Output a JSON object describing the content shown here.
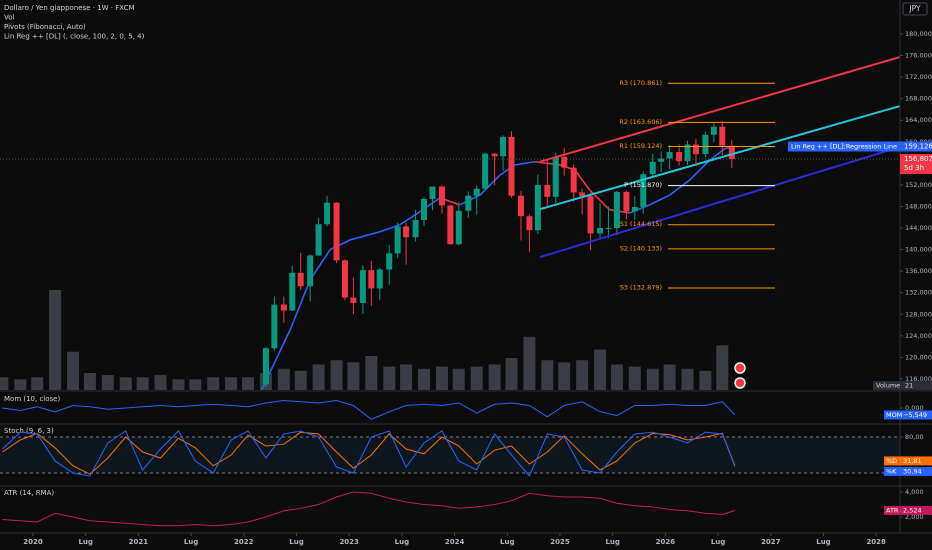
{
  "chart_data": {
    "type": "candlestick",
    "legend_lines": [
      "Dollaro / Yen giapponese · 1W · FXCM",
      "Vol",
      "Pivots (Fibonacci, Auto)",
      "Lin Reg ++ [DL] (, close, 100, 2, 0, 5, 4)"
    ],
    "currency": "JPY",
    "xlim": [
      2019.687,
      2028.226
    ],
    "xticks": [
      2020,
      {
        "value": 2020.5,
        "label": "Lug"
      },
      2021,
      {
        "value": 2021.5,
        "label": "Lug"
      },
      2022,
      {
        "value": 2022.5,
        "label": "Lug"
      },
      2023,
      {
        "value": 2023.5,
        "label": "Lug"
      },
      2024,
      {
        "value": 2024.5,
        "label": "Lug"
      },
      2025,
      {
        "value": 2025.5,
        "label": "Lug"
      },
      2026,
      {
        "value": 2026.5,
        "label": "Lug"
      },
      2027,
      {
        "value": 2027.5,
        "label": "Lug"
      },
      2028
    ],
    "ylim": [
      113.95,
      186.31
    ],
    "yticks": [
      {
        "value": 116,
        "label": "116,000"
      },
      {
        "value": 120,
        "label": "120,000"
      },
      {
        "value": 124,
        "label": "124,000"
      },
      {
        "value": 128,
        "label": "128,000"
      },
      {
        "value": 132,
        "label": "132,000"
      },
      {
        "value": 136,
        "label": "136,000"
      },
      {
        "value": 140,
        "label": "140,000"
      },
      {
        "value": 144,
        "label": "144,000"
      },
      {
        "value": 148,
        "label": "148,000"
      },
      {
        "value": 152,
        "label": "152,000"
      },
      {
        "value": 156,
        "label": "156,000"
      },
      {
        "value": 160,
        "label": "160,000"
      },
      {
        "value": 164,
        "label": "164,000"
      },
      {
        "value": 168,
        "label": "168,000"
      },
      {
        "value": 172,
        "label": "172,000"
      },
      {
        "value": 176,
        "label": "176,000"
      },
      {
        "value": 180,
        "label": "180,000"
      }
    ],
    "grid": false,
    "up_color": "#089981",
    "down_color": "#f23645",
    "x": [
      2022.21,
      2022.29,
      2022.38,
      2022.46,
      2022.54,
      2022.63,
      2022.71,
      2022.79,
      2022.88,
      2022.96,
      2023.04,
      2023.13,
      2023.21,
      2023.29,
      2023.38,
      2023.46,
      2023.54,
      2023.63,
      2023.71,
      2023.79,
      2023.88,
      2023.96,
      2024.04,
      2024.13,
      2024.21,
      2024.29,
      2024.38,
      2024.46,
      2024.54,
      2024.63,
      2024.71,
      2024.79,
      2024.88,
      2024.96,
      2025.04,
      2025.13,
      2025.21,
      2025.29,
      2025.38,
      2025.46,
      2025.54,
      2025.63,
      2025.71,
      2025.79,
      2025.88,
      2025.96,
      2026.04,
      2026.13,
      2026.21,
      2026.29,
      2026.38,
      2026.46,
      2026.54,
      2026.63
    ],
    "open": [
      115,
      121.7,
      129.8,
      128.7,
      135.7,
      133.2,
      138.9,
      144.7,
      148.7,
      138,
      131.1,
      130.1,
      136.2,
      132.8,
      136.3,
      139.3,
      144.3,
      142.3,
      145.5,
      149.4,
      151.7,
      148.2,
      141,
      147.2,
      150,
      151.3,
      157.8,
      157.3,
      160.9,
      150,
      146.2,
      143.6,
      152,
      149.8,
      157.2,
      155.2,
      150.6,
      149.9,
      143,
      144,
      144,
      150.7,
      147.1,
      147.9,
      154,
      156.3,
      156.9,
      158.1,
      156.4,
      159.5,
      157.7,
      161.3,
      162.8,
      159.3
    ],
    "high": [
      122,
      131.3,
      131.3,
      137,
      139.4,
      139.1,
      145.9,
      150,
      148.8,
      138.2,
      134.8,
      137.1,
      137.9,
      136.6,
      140.9,
      145,
      145,
      147.4,
      149.7,
      151.7,
      151.9,
      148.3,
      148.8,
      150.8,
      151.9,
      158,
      157.9,
      161.2,
      162,
      150.9,
      146.5,
      153.9,
      156.7,
      158,
      158.9,
      155.8,
      151.3,
      150.5,
      148.6,
      148,
      150.9,
      151,
      149.9,
      154.5,
      157.8,
      158.2,
      159.4,
      159.5,
      160.2,
      160.5,
      161.9,
      163.5,
      163.8,
      160.3
    ],
    "low": [
      114.5,
      121.3,
      126.4,
      128.6,
      132.5,
      130.4,
      138.8,
      144.3,
      137.5,
      130.6,
      128,
      128.1,
      129.6,
      130.6,
      133.5,
      138.4,
      137.2,
      141.5,
      144.4,
      147.3,
      146.7,
      140.9,
      140.8,
      145.9,
      146.5,
      151,
      151.9,
      154.6,
      149.6,
      141.7,
      139.6,
      142.9,
      148,
      148.6,
      153.7,
      148.9,
      146.5,
      139.9,
      142.1,
      142.1,
      142.7,
      145.6,
      145.5,
      146.6,
      153.6,
      154.4,
      154.9,
      155.6,
      155.7,
      156.1,
      157.2,
      159.9,
      157.5,
      155.1
    ],
    "close": [
      121.7,
      129.8,
      128.7,
      135.7,
      133.2,
      138.9,
      144.7,
      148.7,
      138,
      131.1,
      130.1,
      136.2,
      132.8,
      136.3,
      139.3,
      144.3,
      142.3,
      145.5,
      149.4,
      151.7,
      148.2,
      141,
      147.2,
      150,
      151.3,
      157.8,
      157.3,
      160.9,
      150,
      146.2,
      143.6,
      152,
      149.8,
      157.2,
      155.2,
      150.6,
      149.9,
      143,
      144,
      144,
      150.7,
      147.1,
      147.9,
      154,
      156.3,
      156.9,
      158.1,
      156.4,
      159.5,
      157.7,
      161.3,
      162.8,
      159.3,
      156.8
    ],
    "last_price": {
      "value": 156.807,
      "label": "156,807",
      "countdown": "5d 3h",
      "color": "#f23645"
    },
    "volume": {
      "name": "Volume",
      "color": "#3a3d45",
      "x": [
        2019.71,
        2019.88,
        2020.04,
        2020.21,
        2020.38,
        2020.54,
        2020.71,
        2020.88,
        2021.04,
        2021.21,
        2021.38,
        2021.54,
        2021.71,
        2021.88,
        2022.04,
        2022.21,
        2022.38,
        2022.54,
        2022.71,
        2022.88,
        2023.04,
        2023.21,
        2023.38,
        2023.54,
        2023.71,
        2023.88,
        2024.04,
        2024.21,
        2024.38,
        2024.54,
        2024.71,
        2024.88,
        2025.04,
        2025.21,
        2025.38,
        2025.54,
        2025.71,
        2025.88,
        2026.04,
        2026.21,
        2026.38,
        2026.54
      ],
      "values": [
        6,
        5,
        6,
        47,
        18,
        8,
        7,
        6,
        6,
        7,
        5,
        5,
        6,
        6,
        6,
        8,
        10,
        9,
        12,
        14,
        13,
        16,
        11,
        12,
        10,
        11,
        10,
        11,
        12,
        15,
        25,
        14,
        13,
        14,
        19,
        12,
        11,
        10,
        12,
        10,
        9,
        21
      ]
    },
    "ma": {
      "rising_color": "#2962ff",
      "falling_color": "#f23645",
      "x": [
        2022.17,
        2022.44,
        2022.63,
        2022.82,
        2023.01,
        2023.29,
        2023.48,
        2023.67,
        2023.86,
        2024.05,
        2024.24,
        2024.43,
        2024.57,
        2024.76,
        2025.0,
        2025.14,
        2025.28,
        2025.47,
        2025.66,
        2025.85,
        2026.04,
        2026.23,
        2026.42,
        2026.57,
        2026.66
      ],
      "values": [
        114.0,
        125.1,
        134.4,
        140,
        141.8,
        143.3,
        144.6,
        147,
        149.6,
        148.3,
        150.1,
        153.8,
        155.7,
        156.3,
        155.7,
        154.8,
        151.1,
        147.4,
        146.8,
        148.3,
        150.1,
        152.9,
        156.6,
        158.8,
        159
      ]
    },
    "channel": [
      {
        "color": "#f23645",
        "x": [
          2024.81,
          2028.22
        ],
        "values": [
          156.3,
          175.7
        ]
      },
      {
        "color": "#26c6da",
        "x": [
          2024.81,
          2028.22
        ],
        "values": [
          147.5,
          166.6
        ]
      },
      {
        "color": "#2b2bd8",
        "x": [
          2024.81,
          2028.22
        ],
        "values": [
          138.6,
          159.0
        ]
      }
    ],
    "regression_label": {
      "name": "Lin Reg ++ [DL]:Regression Line",
      "value": 159.126,
      "label": "159,126",
      "color": "#2962ff"
    },
    "pivot_x": [
      2026.025,
      2027.04
    ],
    "pivots": [
      {
        "label": "R3 (170.861)",
        "value": 170.861,
        "color": "#ff9800"
      },
      {
        "label": "R2 (163.606)",
        "value": 163.606,
        "color": "#ff9800"
      },
      {
        "label": "R1 (159.124)",
        "value": 159.124,
        "color": "#ff9800"
      },
      {
        "label": "P (151.870)",
        "value": 151.87,
        "color": "#ffffff"
      },
      {
        "label": "S1 (144.615)",
        "value": 144.615,
        "color": "#ff9800"
      },
      {
        "label": "S2 (140.133)",
        "value": 140.133,
        "color": "#ff9800"
      },
      {
        "label": "S3 (132.879)",
        "value": 132.879,
        "color": "#ff9800"
      }
    ],
    "indicators": [
      {
        "title": "Mom (10, close)",
        "ylim": [
          -12,
          12
        ],
        "yticks": [
          {
            "value": 0,
            "label": "0,000"
          }
        ],
        "x": [
          2019.71,
          2019.88,
          2020.04,
          2020.21,
          2020.38,
          2020.54,
          2020.71,
          2020.88,
          2021.04,
          2021.21,
          2021.38,
          2021.54,
          2021.71,
          2021.88,
          2022.04,
          2022.21,
          2022.38,
          2022.54,
          2022.71,
          2022.88,
          2023.04,
          2023.21,
          2023.38,
          2023.54,
          2023.71,
          2023.88,
          2024.04,
          2024.21,
          2024.38,
          2024.54,
          2024.71,
          2024.88,
          2025.04,
          2025.21,
          2025.38,
          2025.54,
          2025.71,
          2025.88,
          2026.04,
          2026.21,
          2026.38,
          2026.54,
          2026.66
        ],
        "series": [
          {
            "name": "MOM",
            "color": "#2962ff",
            "last_label": "−5,549",
            "values": [
              0,
              -2,
              1,
              -3,
              2,
              1,
              -1,
              0,
              1,
              2,
              1,
              2,
              3,
              2,
              1,
              4,
              6,
              5,
              4,
              6,
              2,
              -9,
              -3,
              2,
              3,
              2,
              4,
              -4,
              3,
              4,
              2,
              -7,
              2,
              5,
              -3,
              -6,
              2,
              2,
              3,
              2,
              2,
              5,
              -5.549
            ]
          }
        ]
      },
      {
        "title": "Stoch (9, 6, 3)",
        "ylim": [
          0,
          100
        ],
        "yticks": [
          {
            "value": 80,
            "label": "80,00"
          }
        ],
        "band": [
          20,
          80
        ],
        "x": [
          2019.71,
          2019.88,
          2020.04,
          2020.21,
          2020.38,
          2020.54,
          2020.71,
          2020.88,
          2021.04,
          2021.21,
          2021.38,
          2021.54,
          2021.71,
          2021.88,
          2022.04,
          2022.21,
          2022.38,
          2022.54,
          2022.71,
          2022.88,
          2023.04,
          2023.21,
          2023.38,
          2023.54,
          2023.71,
          2023.88,
          2024.04,
          2024.21,
          2024.38,
          2024.54,
          2024.71,
          2024.88,
          2025.04,
          2025.21,
          2025.38,
          2025.54,
          2025.71,
          2025.88,
          2026.04,
          2026.21,
          2026.38,
          2026.54,
          2026.66
        ],
        "series": [
          {
            "name": "%D",
            "color": "#ff6d00",
            "last_label": "31,81",
            "values": [
              55,
              75,
              86,
              62,
              32,
              18,
              45,
              80,
              55,
              45,
              78,
              62,
              32,
              50,
              83,
              65,
              68,
              88,
              85,
              55,
              28,
              50,
              85,
              60,
              52,
              80,
              65,
              35,
              58,
              65,
              35,
              55,
              82,
              52,
              25,
              40,
              70,
              86,
              84,
              75,
              80,
              86,
              31.81
            ]
          },
          {
            "name": "%K",
            "color": "#2962ff",
            "last_label": "30,94",
            "values": [
              60,
              88,
              85,
              40,
              20,
              15,
              70,
              90,
              25,
              60,
              90,
              40,
              20,
              75,
              90,
              45,
              85,
              90,
              80,
              30,
              20,
              80,
              90,
              30,
              70,
              90,
              40,
              25,
              85,
              50,
              15,
              85,
              80,
              25,
              20,
              55,
              85,
              88,
              80,
              70,
              88,
              85,
              30.94
            ]
          }
        ]
      },
      {
        "title": "ATR (14, RMA)",
        "ylim": [
          0.8,
          4.4
        ],
        "yticks": [
          {
            "value": 4,
            "label": "4,000"
          },
          {
            "value": 2,
            "label": "2,000"
          }
        ],
        "x": [
          2019.71,
          2019.88,
          2020.04,
          2020.21,
          2020.38,
          2020.54,
          2020.71,
          2020.88,
          2021.04,
          2021.21,
          2021.38,
          2021.54,
          2021.71,
          2021.88,
          2022.04,
          2022.21,
          2022.38,
          2022.54,
          2022.71,
          2022.88,
          2023.04,
          2023.21,
          2023.38,
          2023.54,
          2023.71,
          2023.88,
          2024.04,
          2024.21,
          2024.38,
          2024.54,
          2024.71,
          2024.88,
          2025.04,
          2025.21,
          2025.38,
          2025.54,
          2025.71,
          2025.88,
          2026.04,
          2026.21,
          2026.38,
          2026.54,
          2026.66
        ],
        "series": [
          {
            "name": "ATR",
            "color": "#c2185b",
            "last_label": "2,524",
            "values": [
              1.8,
              1.7,
              1.6,
              2.3,
              2.0,
              1.7,
              1.6,
              1.5,
              1.4,
              1.3,
              1.3,
              1.4,
              1.3,
              1.4,
              1.6,
              2.0,
              2.5,
              2.7,
              3.0,
              3.6,
              4.0,
              3.9,
              3.5,
              3.2,
              3.0,
              2.9,
              2.7,
              2.8,
              3.0,
              3.3,
              3.9,
              3.7,
              3.6,
              3.6,
              3.5,
              3.1,
              2.9,
              2.8,
              2.6,
              2.5,
              2.3,
              2.2,
              2.524
            ]
          }
        ]
      }
    ]
  }
}
